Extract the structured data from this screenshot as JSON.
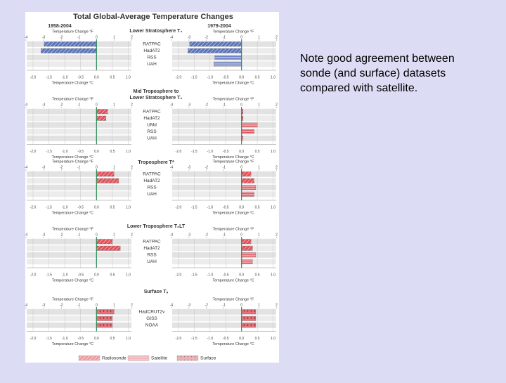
{
  "note": {
    "lines": [
      "Note good agreement between",
      "sonde (and surface) datasets",
      "compared with satellite."
    ]
  },
  "figure": {
    "title": "Total Global-Average Temperature Changes",
    "periods": [
      "1958-2004",
      "1979-2004"
    ],
    "axis_f_label": "Temperature Change °F",
    "axis_c_label": "Temperature Change °C",
    "xlim": [
      -2.2,
      1.1
    ],
    "xlim_f": [
      -3.96,
      1.98
    ],
    "xticks": [
      {
        "value": -2.0,
        "label": "-2.0"
      },
      {
        "value": -1.5,
        "label": "-1.5"
      },
      {
        "value": -1.0,
        "label": "-1.0"
      },
      {
        "value": -0.5,
        "label": "-0.5"
      },
      {
        "value": 0.0,
        "label": "0.0"
      },
      {
        "value": 0.5,
        "label": "0.5"
      },
      {
        "value": 1.0,
        "label": "1.0"
      }
    ],
    "xticks_f": [
      -4,
      -3,
      -2,
      -1,
      0,
      1,
      2
    ],
    "zero_color": "#2e8b57",
    "legend": [
      {
        "name": "Radiosonde",
        "type": "radiosonde"
      },
      {
        "name": "Satellite",
        "type": "satellite"
      },
      {
        "name": "Surface",
        "type": "surface"
      }
    ],
    "panels": [
      {
        "title_lines": [
          "Lower Stratosphere T₄"
        ],
        "rows": [
          {
            "name": "RATPAC",
            "type": "radiosonde",
            "values": [
              -1.65,
              -1.65
            ]
          },
          {
            "name": "HadAT2",
            "type": "radiosonde",
            "values": [
              -1.75,
              -1.7
            ]
          },
          {
            "name": "RSS",
            "type": "satellite",
            "values": [
              null,
              -0.85
            ]
          },
          {
            "name": "UAH",
            "type": "satellite",
            "values": [
              null,
              -0.88
            ]
          }
        ]
      },
      {
        "title_lines": [
          "Mid Troposphere to",
          "Lower Stratosphere T₂"
        ],
        "rows": [
          {
            "name": "RATPAC",
            "type": "radiosonde",
            "values": [
              0.35,
              0.05
            ]
          },
          {
            "name": "HadAT2",
            "type": "radiosonde",
            "values": [
              0.3,
              0.05
            ]
          },
          {
            "name": "UMd",
            "type": "satellite",
            "values": [
              null,
              0.5
            ]
          },
          {
            "name": "RSS",
            "type": "satellite",
            "values": [
              null,
              0.4
            ]
          },
          {
            "name": "UAH",
            "type": "satellite",
            "values": [
              null,
              0.05
            ]
          }
        ]
      },
      {
        "title_lines": [
          "Troposphere T*"
        ],
        "rows": [
          {
            "name": "RATPAC",
            "type": "radiosonde",
            "values": [
              0.55,
              0.3
            ]
          },
          {
            "name": "HadAT2",
            "type": "radiosonde",
            "values": [
              0.7,
              0.4
            ]
          },
          {
            "name": "RSS",
            "type": "satellite",
            "values": [
              null,
              0.45
            ]
          },
          {
            "name": "UAH",
            "type": "satellite",
            "values": [
              null,
              0.4
            ]
          }
        ]
      },
      {
        "title_lines": [
          "Lower Troposphere T₂LT"
        ],
        "rows": [
          {
            "name": "RATPAC",
            "type": "radiosonde",
            "values": [
              0.5,
              0.3
            ]
          },
          {
            "name": "HadAT2",
            "type": "radiosonde",
            "values": [
              0.75,
              0.35
            ]
          },
          {
            "name": "RSS",
            "type": "satellite",
            "values": [
              null,
              0.45
            ]
          },
          {
            "name": "UAH",
            "type": "satellite",
            "values": [
              null,
              0.35
            ]
          }
        ]
      },
      {
        "title_lines": [
          "Surface Tₛ"
        ],
        "rows": [
          {
            "name": "HadCRUT2v",
            "type": "surface",
            "values": [
              0.55,
              0.45
            ]
          },
          {
            "name": "GISS",
            "type": "surface",
            "values": [
              0.5,
              0.45
            ]
          },
          {
            "name": "NOAA",
            "type": "surface",
            "values": [
              0.5,
              0.45
            ]
          }
        ]
      }
    ]
  }
}
